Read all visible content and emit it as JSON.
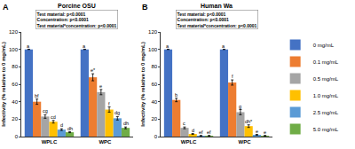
{
  "chart_data": {
    "type": "bar",
    "y_label": "Infectivity (% relative to 0 mg/mL)",
    "ylim": [
      0,
      120
    ],
    "yticks": [
      0,
      20,
      40,
      60,
      80,
      100,
      120
    ],
    "grid": false,
    "legend": "right",
    "categories": [
      "WPLC",
      "WPC"
    ],
    "series": [
      {
        "name": "0 mg/mL",
        "color": "#4472c4"
      },
      {
        "name": "0.1 mg/mL",
        "color": "#ed7d31"
      },
      {
        "name": "0.5 mg/mL",
        "color": "#a5a5a5"
      },
      {
        "name": "1.0 mg/mL",
        "color": "#ffc000"
      },
      {
        "name": "2.5 mg/mL",
        "color": "#5b9bd5"
      },
      {
        "name": "5.0 mg/mL",
        "color": "#70ad47"
      }
    ],
    "panels": [
      {
        "panel": "A",
        "title": "Porcine OSU",
        "stats": [
          "Test material: p<0.0001",
          "Concentration: p<0.0001",
          "Test material*concentration: p<0.0001"
        ],
        "data": [
          {
            "values": [
              100,
              100
            ],
            "errors": [
              0,
              0
            ],
            "labels": [
              "a",
              "a"
            ]
          },
          {
            "values": [
              40,
              68
            ],
            "errors": [
              3,
              4
            ],
            "labels": [
              "bf",
              "e*"
            ]
          },
          {
            "values": [
              23,
              51
            ],
            "errors": [
              2,
              3
            ],
            "labels": [
              "cg",
              "e"
            ]
          },
          {
            "values": [
              17,
              31
            ],
            "errors": [
              1.5,
              3
            ],
            "labels": [
              "cd",
              "f"
            ]
          },
          {
            "values": [
              8,
              21
            ],
            "errors": [
              1,
              2
            ],
            "labels": [
              "d",
              "dg"
            ]
          },
          {
            "values": [
              5,
              10
            ],
            "errors": [
              0.5,
              1
            ],
            "labels": [
              "dh",
              "dh"
            ]
          }
        ]
      },
      {
        "panel": "B",
        "title": "Human Wa",
        "stats": [
          "Test material: p<0.0001",
          "Concentration: p<0.0001",
          "Test material*concentration: p<0.0001"
        ],
        "data": [
          {
            "values": [
              100,
              100
            ],
            "errors": [
              0,
              0
            ],
            "labels": [
              "a",
              "a"
            ]
          },
          {
            "values": [
              42,
              62
            ],
            "errors": [
              2,
              3
            ],
            "labels": [
              "b",
              "f"
            ]
          },
          {
            "values": [
              10,
              28
            ],
            "errors": [
              1,
              3
            ],
            "labels": [
              "c",
              "g"
            ]
          },
          {
            "values": [
              3,
              12
            ],
            "errors": [
              0.5,
              1.5
            ],
            "labels": [
              "d",
              "dh*"
            ]
          },
          {
            "values": [
              1,
              2
            ],
            "errors": [
              0.3,
              0.5
            ],
            "labels": [
              "ef",
              "e"
            ]
          },
          {
            "values": [
              1,
              1
            ],
            "errors": [
              0.3,
              0.3
            ],
            "labels": [
              "ef",
              "e"
            ]
          }
        ]
      }
    ]
  }
}
